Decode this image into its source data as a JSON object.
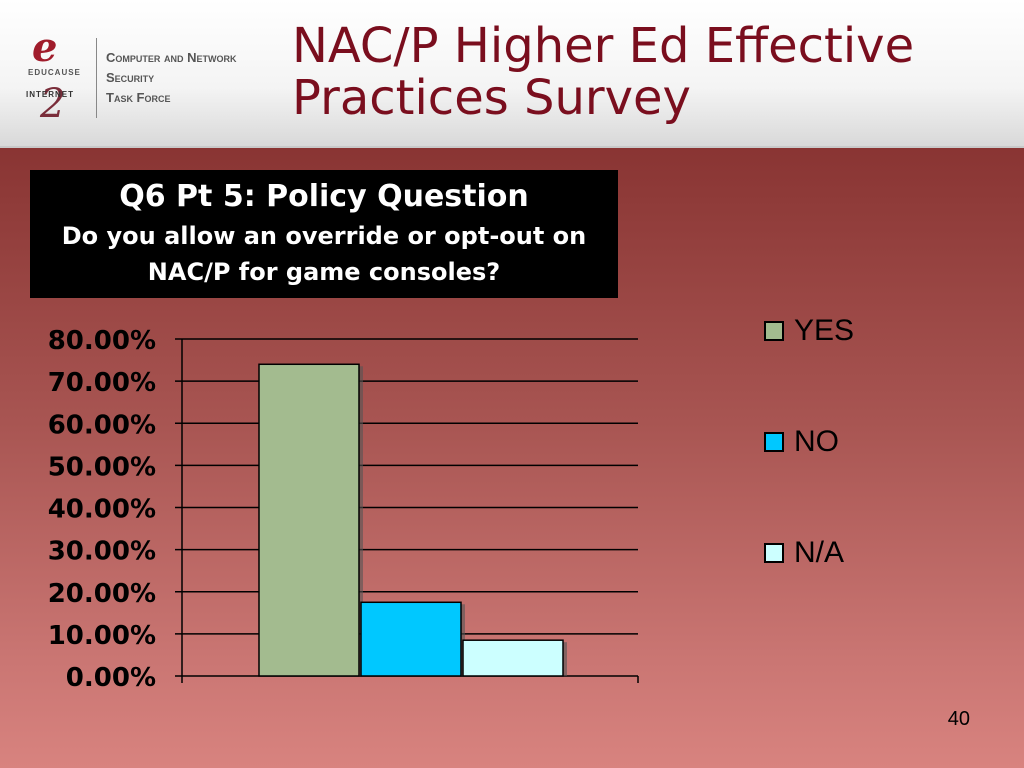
{
  "header": {
    "title_line1": "NAC/P Higher Ed Effective",
    "title_line2": "Practices Survey",
    "logo": {
      "e_glyph": "e",
      "educause": "EDUCAUSE",
      "internet": "INTERNET",
      "two_glyph": "2",
      "taskforce_line1": "Computer and Network",
      "taskforce_line2": "Security",
      "taskforce_line3": "Task Force"
    }
  },
  "question": {
    "line1": "Q6 Pt 5: Policy Question",
    "line2": "Do you allow an override or opt-out on",
    "line3": "NAC/P for game consoles?"
  },
  "chart_data": {
    "type": "bar",
    "title": "",
    "xlabel": "",
    "ylabel": "",
    "ylim": [
      0,
      80
    ],
    "yticks": [
      "0.00%",
      "10.00%",
      "20.00%",
      "30.00%",
      "40.00%",
      "50.00%",
      "60.00%",
      "70.00%",
      "80.00%"
    ],
    "grid": true,
    "legend_position": "right",
    "series": [
      {
        "name": "YES",
        "values": [
          74
        ],
        "color": "#a3bb8f"
      },
      {
        "name": "NO",
        "values": [
          17.5
        ],
        "color": "#00c8ff"
      },
      {
        "name": "N/A",
        "values": [
          8.5
        ],
        "color": "#ccffff"
      }
    ]
  },
  "page_number": "40"
}
